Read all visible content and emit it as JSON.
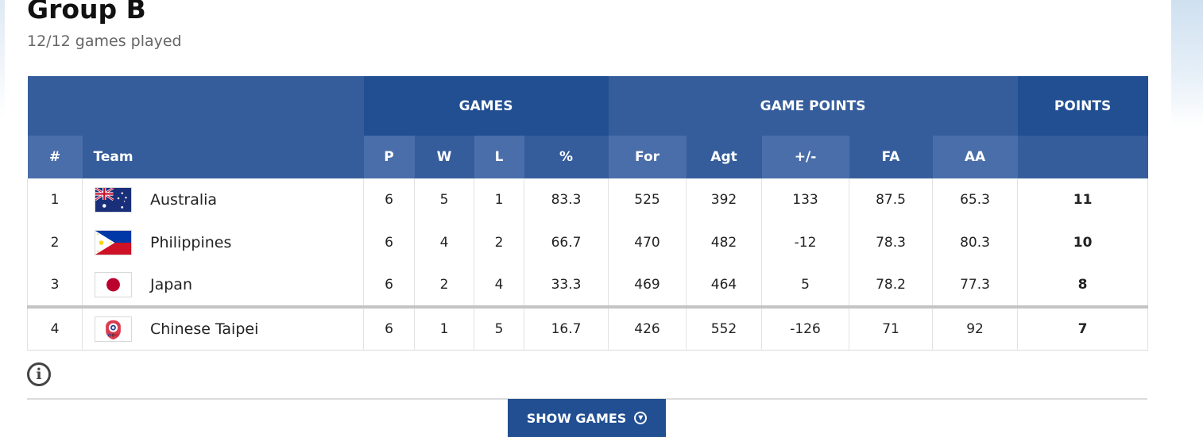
{
  "group": {
    "title": "Group B",
    "subtitle": "12/12 games played"
  },
  "table": {
    "groups": {
      "games": "GAMES",
      "game_points": "GAME POINTS",
      "points": "POINTS"
    },
    "columns": {
      "rank": "#",
      "team": "Team",
      "p": "P",
      "w": "W",
      "l": "L",
      "pct": "%",
      "for": "For",
      "agt": "Agt",
      "diff": "+/-",
      "fa": "FA",
      "aa": "AA"
    },
    "rows": [
      {
        "rank": "1",
        "team": "Australia",
        "flag": "australia-flag",
        "p": "6",
        "w": "5",
        "l": "1",
        "pct": "83.3",
        "for": "525",
        "agt": "392",
        "diff": "133",
        "fa": "87.5",
        "aa": "65.3",
        "points": "11"
      },
      {
        "rank": "2",
        "team": "Philippines",
        "flag": "philippines-flag",
        "p": "6",
        "w": "4",
        "l": "2",
        "pct": "66.7",
        "for": "470",
        "agt": "482",
        "diff": "-12",
        "fa": "78.3",
        "aa": "80.3",
        "points": "10"
      },
      {
        "rank": "3",
        "team": "Japan",
        "flag": "japan-flag",
        "p": "6",
        "w": "2",
        "l": "4",
        "pct": "33.3",
        "for": "469",
        "agt": "464",
        "diff": "5",
        "fa": "78.2",
        "aa": "77.3",
        "points": "8"
      },
      {
        "rank": "4",
        "team": "Chinese Taipei",
        "flag": "chinese-taipei-flag",
        "p": "6",
        "w": "1",
        "l": "5",
        "pct": "16.7",
        "for": "426",
        "agt": "552",
        "diff": "-126",
        "fa": "71",
        "aa": "92",
        "points": "7"
      }
    ]
  },
  "info_icon": "info-icon",
  "show_games": {
    "label": "SHOW GAMES",
    "icon": "chevron-down-circle-icon"
  },
  "colors": {
    "header_dark": "#214f92",
    "header_light": "#355d9b",
    "header_mid": "#4a6ea9"
  }
}
